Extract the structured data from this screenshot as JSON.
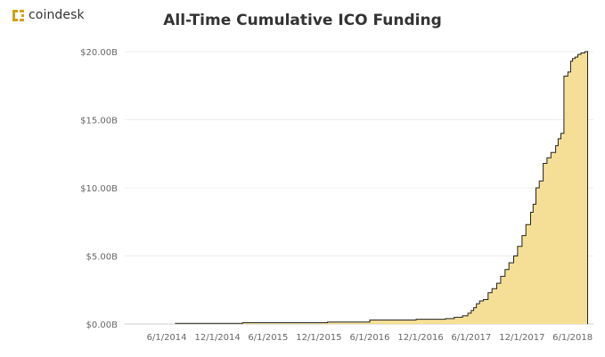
{
  "brand": {
    "name": "coindesk",
    "logo_icon": "coindesk-logo-icon",
    "color": "#d4a017"
  },
  "chart_data": {
    "type": "area",
    "title": "All-Time Cumulative ICO Funding",
    "xlabel": "",
    "ylabel": "",
    "x_tick_labels": [
      "6/1/2014",
      "12/1/2014",
      "6/1/2015",
      "12/1/2015",
      "6/1/2016",
      "12/1/2016",
      "6/1/2017",
      "12/1/2017",
      "6/1/2018"
    ],
    "x_ticks": [
      "2014-06-01",
      "2014-12-01",
      "2015-06-01",
      "2015-12-01",
      "2016-06-01",
      "2016-12-01",
      "2017-06-01",
      "2017-12-01",
      "2018-06-01"
    ],
    "y_tick_labels": [
      "$0.00B",
      "$5.00B",
      "$10.00B",
      "$15.00B",
      "$20.00B"
    ],
    "y_ticks": [
      0,
      5,
      10,
      15,
      20
    ],
    "ylim": [
      0,
      20
    ],
    "xlim": [
      "2014-01-01",
      "2018-08-15"
    ],
    "grid": true,
    "fill_color": "#f5df96",
    "line_color": "#222222",
    "series": [
      {
        "x": [
          "2014-07-01",
          "2015-03-01",
          "2016-01-01",
          "2016-06-01",
          "2016-11-15",
          "2017-03-01",
          "2017-04-01",
          "2017-05-01",
          "2017-05-20",
          "2017-06-01",
          "2017-06-10",
          "2017-06-20",
          "2017-07-01",
          "2017-07-15",
          "2017-08-01",
          "2017-08-15",
          "2017-09-01",
          "2017-09-15",
          "2017-10-01",
          "2017-10-15",
          "2017-11-01",
          "2017-11-15",
          "2017-12-01",
          "2017-12-15",
          "2018-01-01",
          "2018-01-10",
          "2018-01-20",
          "2018-02-01",
          "2018-02-15",
          "2018-03-01",
          "2018-03-15",
          "2018-04-01",
          "2018-04-10",
          "2018-04-20",
          "2018-05-01",
          "2018-05-15",
          "2018-05-25",
          "2018-06-01",
          "2018-06-10",
          "2018-06-20",
          "2018-07-01",
          "2018-07-15",
          "2018-07-25"
        ],
        "y": [
          0.05,
          0.1,
          0.15,
          0.3,
          0.35,
          0.4,
          0.5,
          0.6,
          0.8,
          1.0,
          1.2,
          1.5,
          1.7,
          1.8,
          2.3,
          2.6,
          3.0,
          3.5,
          4.0,
          4.5,
          5.0,
          5.7,
          6.5,
          7.3,
          8.2,
          8.8,
          10.0,
          10.5,
          11.8,
          12.2,
          12.6,
          13.1,
          13.6,
          14.0,
          18.2,
          18.5,
          19.3,
          19.5,
          19.6,
          19.8,
          19.9,
          20.0,
          20.05
        ]
      }
    ]
  }
}
